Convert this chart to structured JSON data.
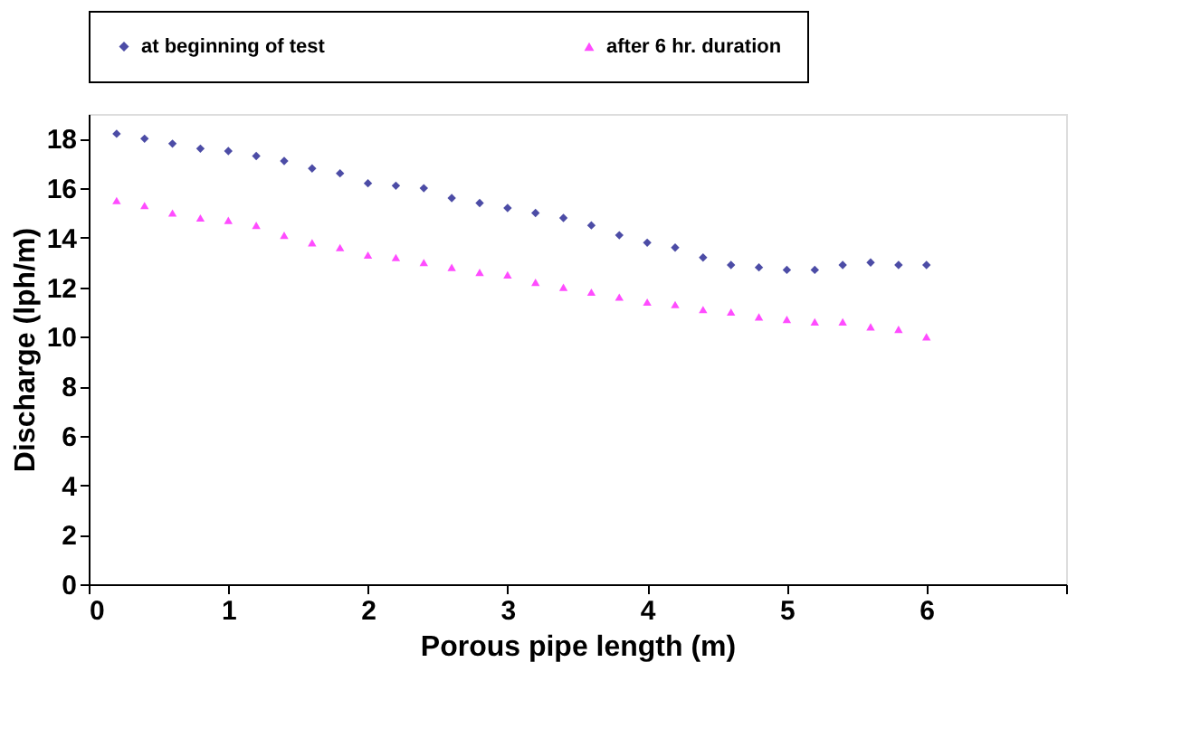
{
  "chart_data": {
    "type": "scatter",
    "xlabel": "Porous pipe length (m)",
    "ylabel": "Discharge (lph/m)",
    "x": [
      0.2,
      0.4,
      0.6,
      0.8,
      1.0,
      1.2,
      1.4,
      1.6,
      1.8,
      2.0,
      2.2,
      2.4,
      2.6,
      2.8,
      3.0,
      3.2,
      3.4,
      3.6,
      3.8,
      4.0,
      4.2,
      4.4,
      4.6,
      4.8,
      5.0,
      5.2,
      5.4,
      5.6,
      5.8,
      6.0
    ],
    "series": [
      {
        "name": "at beginning of test",
        "color": "#000080",
        "marker": "diamond",
        "values": [
          18.2,
          18.0,
          17.8,
          17.6,
          17.5,
          17.3,
          17.1,
          16.8,
          16.6,
          16.2,
          16.1,
          16.0,
          15.6,
          15.4,
          15.2,
          15.0,
          14.8,
          14.5,
          14.1,
          13.8,
          13.6,
          13.2,
          12.9,
          12.8,
          12.7,
          12.7,
          12.9,
          13.0,
          12.9,
          12.9
        ]
      },
      {
        "name": "after 6 hr. duration",
        "color": "#ff00ff",
        "marker": "triangle",
        "values": [
          15.5,
          15.3,
          15.0,
          14.8,
          14.7,
          14.5,
          14.1,
          13.8,
          13.6,
          13.3,
          13.2,
          13.0,
          12.8,
          12.6,
          12.5,
          12.2,
          12.0,
          11.8,
          11.6,
          11.4,
          11.3,
          11.1,
          11.0,
          10.8,
          10.7,
          10.6,
          10.6,
          10.4,
          10.3,
          10.0
        ]
      }
    ],
    "xlim": [
      0,
      7
    ],
    "xticks": [
      0,
      1,
      2,
      3,
      4,
      5,
      6,
      {
        "value": 7,
        "label": null
      }
    ],
    "ylim": [
      0,
      19
    ],
    "yticks": [
      0,
      2,
      4,
      6,
      8,
      10,
      12,
      14,
      16,
      18
    ],
    "grid": false,
    "legend": "top"
  }
}
